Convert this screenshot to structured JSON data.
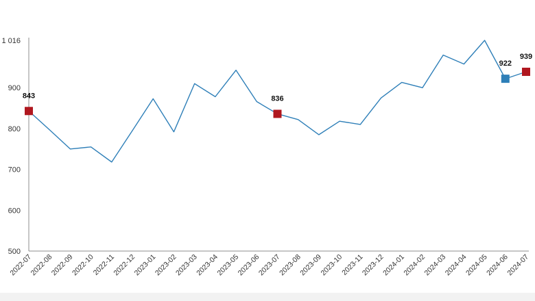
{
  "chart_data": {
    "type": "line",
    "x": [
      "2022-07",
      "2022-08",
      "2022-09",
      "2022-10",
      "2022-11",
      "2022-12",
      "2023-01",
      "2023-02",
      "2023-03",
      "2023-04",
      "2023-05",
      "2023-06",
      "2023-07",
      "2023-08",
      "2023-09",
      "2023-10",
      "2023-11",
      "2023-12",
      "2024-01",
      "2024-02",
      "2024-03",
      "2024-04",
      "2024-05",
      "2024-06",
      "2024-07"
    ],
    "series": [
      {
        "values": [
          843,
          797,
          750,
          755,
          718,
          795,
          873,
          792,
          910,
          878,
          943,
          866,
          836,
          822,
          785,
          818,
          810,
          875,
          913,
          900,
          980,
          958,
          1016,
          922,
          939
        ],
        "color": "#2e7fb8"
      }
    ],
    "y_ticks": [
      "500",
      "600",
      "700",
      "800",
      "900",
      "1 016"
    ],
    "ylim": [
      500,
      1016
    ],
    "highlighted_points": [
      {
        "index": 0,
        "label": "843",
        "color": "#b0171f"
      },
      {
        "index": 12,
        "label": "836",
        "color": "#b0171f"
      },
      {
        "index": 23,
        "label": "922",
        "color": "#2e7fb8"
      },
      {
        "index": 24,
        "label": "939",
        "color": "#b0171f"
      }
    ],
    "grid": false,
    "legend": "none",
    "title": "",
    "xlabel": "",
    "ylabel": ""
  }
}
